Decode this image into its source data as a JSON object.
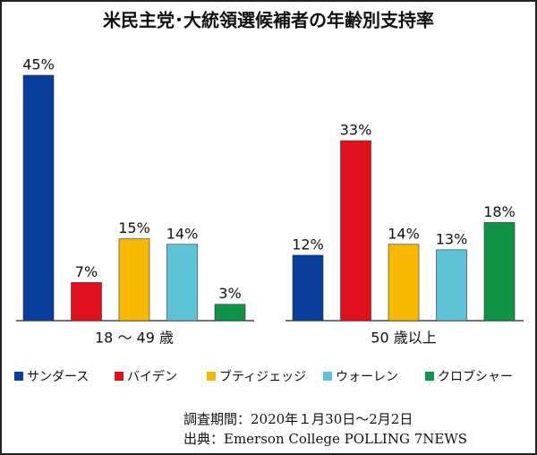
{
  "chart_data": {
    "type": "bar",
    "title": "米民主党･大統領選候補者の年齢別支持率",
    "categories": [
      "18 ～ 49 歳",
      "50 歳以上"
    ],
    "series": [
      {
        "name": "サンダース",
        "color": "#0a3d9b",
        "values": [
          45,
          12
        ],
        "value_labels": [
          "45%",
          "12%"
        ]
      },
      {
        "name": "バイデン",
        "color": "#e0101c",
        "values": [
          7,
          33
        ],
        "value_labels": [
          "7%",
          "33%"
        ]
      },
      {
        "name": "ブティジェッジ",
        "color": "#f8b800",
        "values": [
          15,
          14
        ],
        "value_labels": [
          "15%",
          "14%"
        ]
      },
      {
        "name": "ウォーレン",
        "color": "#5bc3d4",
        "values": [
          14,
          13
        ],
        "value_labels": [
          "14%",
          "13%"
        ]
      },
      {
        "name": "クロブシャー",
        "color": "#0f9447",
        "values": [
          3,
          18
        ],
        "value_labels": [
          "3%",
          "18%"
        ]
      }
    ],
    "legend": "bottom",
    "notes": [
      "調査期間：2020年１月30日～2月2日",
      "出典：Emerson College POLLING 7NEWS"
    ]
  }
}
